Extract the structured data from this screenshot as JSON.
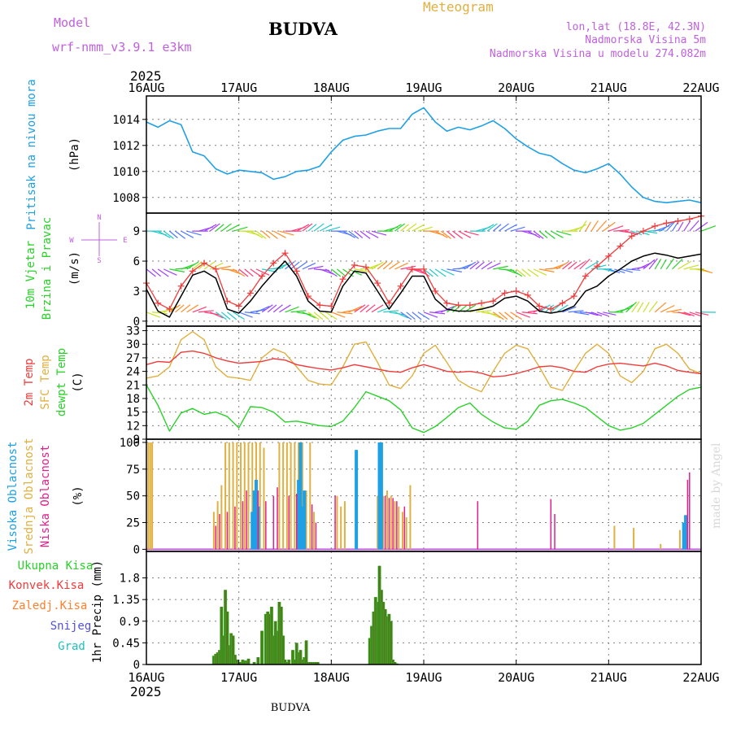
{
  "header": {
    "model_label": "Model",
    "model_name": "wrf-nmm_v3.9.1 e3km",
    "station": "BUDVA",
    "product": "Meteogram",
    "lonlat": "lon,lat (18.8E, 42.3N)",
    "elevation": "Nadmorska Visina 5m",
    "model_elevation": "Nadmorska Visina u modelu 274.082m",
    "year_top": "2025",
    "year_bottom": "2025",
    "footer_station": "BUDVA",
    "credit": "made by Angel"
  },
  "colors": {
    "pressure": "#1ea0e6",
    "violet": "#c060e0",
    "gold": "#e0b040",
    "red": "#f03c3c",
    "green": "#28d228",
    "orange": "#ff7f2a",
    "blue_snow": "#5050e0",
    "teal": "#20c0c0",
    "magenta": "#e0208c",
    "olive": "#4f7a1e",
    "grid": "#808080"
  },
  "chart_data": [
    {
      "type": "line",
      "title": "Pritisak na nivou mora",
      "ylabel": "(hPa)",
      "ylim": [
        1006.8,
        1015.8
      ],
      "yticks": [
        1008,
        1010,
        1012,
        1014
      ],
      "x_hours": [
        0,
        3,
        6,
        9,
        12,
        15,
        18,
        21,
        24,
        27,
        30,
        33,
        36,
        39,
        42,
        45,
        48,
        51,
        54,
        57,
        60,
        63,
        66,
        69,
        72,
        75,
        78,
        81,
        84,
        87,
        90,
        93,
        96,
        99,
        102,
        105,
        108,
        111,
        114,
        117,
        120,
        123,
        126,
        129,
        132,
        135,
        138,
        141,
        144
      ],
      "series": [
        {
          "name": "Pressure",
          "values": [
            1013.8,
            1013.4,
            1013.9,
            1013.6,
            1011.5,
            1011.2,
            1010.2,
            1009.8,
            1010.1,
            1010.0,
            1009.9,
            1009.4,
            1009.6,
            1010.0,
            1010.1,
            1010.4,
            1011.5,
            1012.4,
            1012.7,
            1012.8,
            1013.1,
            1013.3,
            1013.3,
            1014.4,
            1014.9,
            1013.8,
            1013.1,
            1013.4,
            1013.2,
            1013.5,
            1013.9,
            1013.3,
            1012.5,
            1011.9,
            1011.4,
            1011.2,
            1010.6,
            1010.1,
            1009.9,
            1010.2,
            1010.6,
            1009.8,
            1008.8,
            1008.0,
            1007.7,
            1007.6,
            1007.7,
            1007.8,
            1007.6
          ]
        }
      ]
    },
    {
      "type": "line",
      "title": "10m Vjetar Brzina i Pravac",
      "ylabel": "(m/s)",
      "ylim": [
        -0.5,
        10.8
      ],
      "yticks": [
        0,
        3,
        6,
        9
      ],
      "compass": [
        "N",
        "W",
        "E",
        "S"
      ],
      "x_hours": [
        0,
        3,
        6,
        9,
        12,
        15,
        18,
        21,
        24,
        27,
        30,
        33,
        36,
        39,
        42,
        45,
        48,
        51,
        54,
        57,
        60,
        63,
        66,
        69,
        72,
        75,
        78,
        81,
        84,
        87,
        90,
        93,
        96,
        99,
        102,
        105,
        108,
        111,
        114,
        117,
        120,
        123,
        126,
        129,
        132,
        135,
        138,
        141,
        144
      ],
      "series": [
        {
          "name": "Wind speed",
          "values": [
            3.2,
            1.0,
            0.4,
            2.5,
            4.6,
            5.0,
            4.3,
            1.2,
            0.8,
            2.0,
            3.5,
            4.8,
            6.0,
            4.5,
            2.0,
            1.0,
            0.9,
            3.5,
            5.0,
            4.8,
            3.0,
            1.2,
            2.8,
            4.5,
            4.5,
            2.2,
            1.2,
            1.0,
            1.0,
            1.2,
            1.5,
            2.3,
            2.5,
            2.0,
            1.0,
            0.8,
            1.0,
            1.5,
            3.0,
            3.5,
            4.5,
            5.2,
            6.0,
            6.5,
            6.8,
            6.6,
            6.3,
            6.5,
            6.7
          ]
        },
        {
          "name": "Wind gust",
          "values": [
            3.8,
            1.8,
            1.2,
            3.5,
            5.0,
            5.8,
            5.2,
            2.0,
            1.5,
            2.8,
            4.5,
            5.8,
            6.8,
            5.0,
            2.5,
            1.6,
            1.5,
            4.2,
            5.6,
            5.4,
            3.8,
            1.8,
            3.5,
            5.2,
            5.2,
            3.0,
            1.8,
            1.6,
            1.6,
            1.8,
            2.0,
            2.8,
            3.0,
            2.6,
            1.5,
            1.2,
            1.8,
            2.5,
            4.5,
            5.5,
            6.5,
            7.5,
            8.5,
            9.0,
            9.5,
            9.8,
            10.0,
            10.2,
            10.5
          ]
        }
      ]
    },
    {
      "type": "line",
      "title": "2m Temp / SFC Temp / dewpt Temp",
      "ylabel": "(C)",
      "ylim": [
        9,
        34
      ],
      "yticks": [
        9,
        12,
        15,
        18,
        21,
        24,
        27,
        30,
        33
      ],
      "x_hours": [
        0,
        3,
        6,
        9,
        12,
        15,
        18,
        21,
        24,
        27,
        30,
        33,
        36,
        39,
        42,
        45,
        48,
        51,
        54,
        57,
        60,
        63,
        66,
        69,
        72,
        75,
        78,
        81,
        84,
        87,
        90,
        93,
        96,
        99,
        102,
        105,
        108,
        111,
        114,
        117,
        120,
        123,
        126,
        129,
        132,
        135,
        138,
        141,
        144
      ],
      "series": [
        {
          "name": "2m Temp",
          "values": [
            25.5,
            26.2,
            26.0,
            28.2,
            28.5,
            28.0,
            27.0,
            26.3,
            25.8,
            26.0,
            26.2,
            26.8,
            26.5,
            25.5,
            25.0,
            24.6,
            24.3,
            24.8,
            25.5,
            25.0,
            24.5,
            24.0,
            23.8,
            24.8,
            25.5,
            24.8,
            24.0,
            23.8,
            24.0,
            23.6,
            22.8,
            23.0,
            23.5,
            24.2,
            25.0,
            25.2,
            24.8,
            24.0,
            23.8,
            25.0,
            25.6,
            25.8,
            25.5,
            25.2,
            25.8,
            25.2,
            24.2,
            23.8,
            23.5
          ]
        },
        {
          "name": "SFC Temp",
          "values": [
            22.5,
            23.0,
            25.0,
            31.0,
            32.8,
            31.0,
            25.0,
            22.8,
            22.5,
            22.0,
            27.0,
            29.0,
            28.0,
            25.0,
            22.0,
            21.2,
            21.0,
            25.0,
            30.0,
            30.5,
            26.0,
            21.0,
            20.2,
            23.0,
            28.0,
            29.8,
            26.0,
            22.0,
            20.5,
            19.5,
            24.0,
            28.0,
            29.8,
            29.0,
            25.0,
            20.5,
            19.8,
            24.0,
            28.0,
            30.0,
            28.0,
            23.0,
            21.5,
            24.0,
            29.0,
            30.0,
            28.0,
            24.5,
            23.5
          ]
        },
        {
          "name": "dewpt Temp",
          "values": [
            21.0,
            16.5,
            10.8,
            14.8,
            15.8,
            14.5,
            15.0,
            14.0,
            11.5,
            16.2,
            16.0,
            15.0,
            12.8,
            13.0,
            12.5,
            12.0,
            11.8,
            13.0,
            16.0,
            19.5,
            18.5,
            17.5,
            15.5,
            11.5,
            10.5,
            11.8,
            13.8,
            16.0,
            17.0,
            14.5,
            12.8,
            11.5,
            11.2,
            13.0,
            16.5,
            17.5,
            17.8,
            17.0,
            16.0,
            14.0,
            12.0,
            11.0,
            11.5,
            12.5,
            14.5,
            16.5,
            18.5,
            20.0,
            20.5
          ]
        }
      ]
    },
    {
      "type": "bar",
      "title": "Visoka / Srednja / Niska Oblacnost",
      "ylabel": "(%)",
      "ylim": [
        -2,
        103
      ],
      "yticks": [
        0,
        25,
        50,
        75,
        100
      ],
      "series": [
        {
          "name": "Visoka Oblacnost",
          "hours": [
            27.5,
            28.0,
            28.5,
            29.0,
            39.5,
            40.0,
            40.5,
            41.0,
            54.5,
            60.5,
            61.0,
            139.5,
            140.0
          ],
          "values": [
            35,
            55,
            65,
            40,
            65,
            100,
            40,
            55,
            93,
            100,
            100,
            25,
            32
          ]
        },
        {
          "name": "Srednja Oblacnost",
          "hours": [
            0.5,
            1.0,
            1.5,
            17.5,
            18.5,
            19.5,
            20.5,
            21.5,
            22.5,
            23.5,
            24.5,
            25.5,
            26.5,
            27.5,
            28.5,
            29.5,
            30.5,
            34.5,
            35.5,
            36.5,
            37.5,
            38.5,
            39.5,
            40.5,
            41.5,
            42.5,
            43.5,
            49.5,
            50.5,
            51.5,
            60.0,
            61.5,
            62.5,
            63.5,
            64.5,
            65.5,
            66.5,
            67.5,
            68.5,
            121.5,
            126.5,
            133.5,
            138.5
          ],
          "values": [
            100,
            100,
            100,
            35,
            45,
            60,
            100,
            100,
            100,
            100,
            100,
            100,
            100,
            100,
            100,
            100,
            95,
            100,
            100,
            100,
            100,
            100,
            100,
            100,
            55,
            100,
            35,
            50,
            40,
            45,
            50,
            50,
            55,
            50,
            45,
            40,
            35,
            30,
            60,
            22,
            20,
            5,
            18
          ]
        },
        {
          "name": "Niska Oblacnost",
          "hours": [
            18.0,
            19.0,
            21.0,
            23.0,
            25.0,
            26.0,
            29.0,
            31.0,
            33.0,
            34.0,
            37.0,
            39.0,
            43.0,
            44.0,
            49.0,
            62.0,
            63.0,
            64.0,
            65.0,
            67.0,
            86.0,
            105.0,
            106.0,
            140.5,
            141.0
          ],
          "values": [
            22,
            33,
            35,
            40,
            45,
            55,
            55,
            45,
            50,
            58,
            50,
            52,
            42,
            25,
            50,
            50,
            48,
            48,
            45,
            40,
            45,
            47,
            33,
            65,
            72
          ]
        }
      ]
    },
    {
      "type": "bar",
      "title": "1hr Precip",
      "ylabel": "1hr Precip (mm)",
      "ylim": [
        0,
        2.35
      ],
      "yticks": [
        0,
        0.45,
        0.9,
        1.35,
        1.8
      ],
      "categories_legend": [
        "Ukupna Kisa",
        "Konvek.Kisa",
        "Zaledj.Kisa",
        "Snijeg",
        "Grad"
      ],
      "hours": [
        17.5,
        18,
        18.5,
        19,
        19.5,
        20,
        20.5,
        21,
        21.5,
        22,
        22.5,
        23,
        23.5,
        24,
        24.5,
        25,
        25.5,
        26,
        26.5,
        28,
        29,
        30,
        31,
        31.5,
        32,
        32.5,
        33,
        33.5,
        34,
        34.5,
        35,
        35.5,
        36,
        36.5,
        37,
        38,
        38.5,
        39,
        39.5,
        40,
        40.5,
        41,
        41.5,
        42,
        42.5,
        43,
        43.5,
        44,
        44.5,
        58,
        58.5,
        59,
        59.5,
        60,
        60.5,
        61,
        61.5,
        62,
        62.5,
        63,
        63.5,
        64,
        64.5,
        65
      ],
      "values": [
        0.18,
        0.22,
        0.25,
        0.3,
        1.2,
        0.6,
        1.55,
        1.1,
        0.4,
        0.65,
        0.6,
        0.2,
        0.1,
        0.05,
        0.05,
        0.1,
        0.08,
        0.08,
        0.12,
        0.05,
        0.15,
        0.7,
        1.05,
        1.1,
        1.05,
        1.2,
        0.6,
        0.9,
        0.7,
        1.3,
        1.2,
        0.6,
        0.1,
        0.05,
        0.1,
        0.3,
        0.1,
        0.45,
        0.25,
        0.3,
        0.1,
        0.15,
        0.5,
        0.05,
        0.05,
        0.05,
        0.05,
        0.05,
        0.05,
        0.55,
        0.8,
        1.1,
        1.4,
        1.3,
        2.05,
        1.55,
        1.3,
        1.15,
        1.0,
        1.05,
        0.9,
        0.1,
        0.05,
        0.02
      ],
      "convective": [
        0.18,
        0.22,
        0.25,
        0.3,
        1.2,
        0.6,
        1.55,
        1.1,
        0.4,
        0.65,
        0.6,
        0.2,
        0.1,
        0.05,
        0.05,
        0.1,
        0.08,
        0.08,
        0.12,
        0.05,
        0.15,
        0.7,
        1.05,
        1.1,
        1.05,
        1.2,
        0.6,
        0.9,
        0.7,
        1.3,
        1.2,
        0.6,
        0.1,
        0.05,
        0.1,
        0.3,
        0.1,
        0.45,
        0.25,
        0.3,
        0.1,
        0.15,
        0.5,
        0.05,
        0.05,
        0.05,
        0.05,
        0.05,
        0.05,
        0.55,
        0.8,
        1.1,
        1.4,
        1.3,
        2.05,
        1.55,
        1.3,
        1.15,
        1.0,
        1.05,
        0.9,
        0.1,
        0.05,
        0.02
      ]
    }
  ],
  "x_axis": {
    "labels": [
      "16AUG",
      "17AUG",
      "18AUG",
      "19AUG",
      "20AUG",
      "21AUG",
      "22AUG"
    ],
    "total_hours": 144
  }
}
